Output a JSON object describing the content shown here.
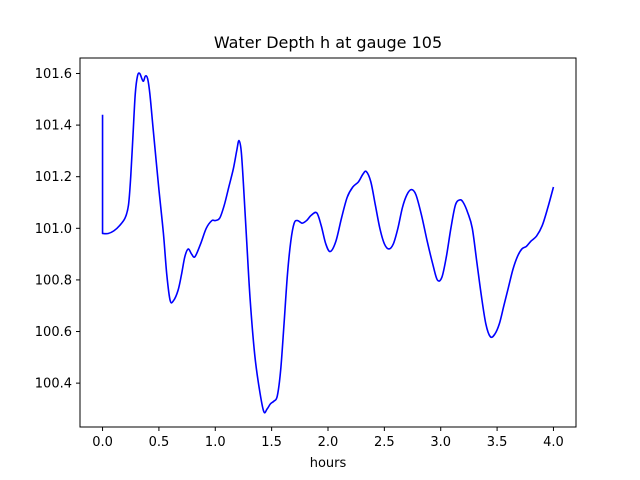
{
  "chart_data": {
    "type": "line",
    "title": "Water Depth h at gauge 105",
    "xlabel": "hours",
    "ylabel": "",
    "xlim": [
      -0.2,
      4.2
    ],
    "ylim": [
      100.23,
      101.66
    ],
    "xticks": [
      0.0,
      0.5,
      1.0,
      1.5,
      2.0,
      2.5,
      3.0,
      3.5,
      4.0
    ],
    "xtick_labels": [
      "0.0",
      "0.5",
      "1.0",
      "1.5",
      "2.0",
      "2.5",
      "3.0",
      "3.5",
      "4.0"
    ],
    "yticks": [
      100.4,
      100.6,
      100.8,
      101.0,
      101.2,
      101.4,
      101.6
    ],
    "ytick_labels": [
      "100.4",
      "100.6",
      "100.8",
      "101.0",
      "101.2",
      "101.4",
      "101.6"
    ],
    "grid": false,
    "series": [
      {
        "color": "#0000ff",
        "x": [
          0.0,
          0.0,
          0.05,
          0.1,
          0.15,
          0.2,
          0.23,
          0.25,
          0.27,
          0.29,
          0.31,
          0.33,
          0.36,
          0.38,
          0.4,
          0.42,
          0.45,
          0.5,
          0.54,
          0.57,
          0.6,
          0.63,
          0.67,
          0.7,
          0.73,
          0.76,
          0.79,
          0.82,
          0.87,
          0.92,
          0.97,
          1.0,
          1.04,
          1.08,
          1.12,
          1.16,
          1.19,
          1.21,
          1.23,
          1.25,
          1.28,
          1.31,
          1.35,
          1.39,
          1.43,
          1.46,
          1.49,
          1.52,
          1.55,
          1.58,
          1.61,
          1.64,
          1.67,
          1.7,
          1.73,
          1.77,
          1.81,
          1.85,
          1.9,
          1.94,
          1.98,
          2.02,
          2.07,
          2.12,
          2.17,
          2.22,
          2.27,
          2.31,
          2.34,
          2.38,
          2.42,
          2.46,
          2.5,
          2.54,
          2.58,
          2.62,
          2.66,
          2.7,
          2.74,
          2.78,
          2.83,
          2.88,
          2.93,
          2.97,
          3.01,
          3.05,
          3.09,
          3.13,
          3.17,
          3.2,
          3.24,
          3.28,
          3.32,
          3.36,
          3.4,
          3.44,
          3.48,
          3.52,
          3.56,
          3.6,
          3.64,
          3.68,
          3.72,
          3.76,
          3.8,
          3.85,
          3.9,
          3.95,
          4.0
        ],
        "y": [
          101.44,
          100.98,
          100.98,
          100.99,
          101.01,
          101.04,
          101.09,
          101.2,
          101.36,
          101.52,
          101.59,
          101.6,
          101.57,
          101.59,
          101.58,
          101.52,
          101.38,
          101.15,
          100.98,
          100.82,
          100.72,
          100.72,
          100.76,
          100.82,
          100.89,
          100.92,
          100.9,
          100.89,
          100.94,
          101.0,
          101.03,
          101.03,
          101.04,
          101.09,
          101.16,
          101.23,
          101.3,
          101.34,
          101.3,
          101.17,
          100.94,
          100.72,
          100.51,
          100.38,
          100.29,
          100.3,
          100.32,
          100.33,
          100.35,
          100.45,
          100.63,
          100.82,
          100.95,
          101.02,
          101.03,
          101.02,
          101.03,
          101.05,
          101.06,
          101.01,
          100.94,
          100.91,
          100.95,
          101.04,
          101.12,
          101.16,
          101.18,
          101.21,
          101.22,
          101.18,
          101.09,
          101.0,
          100.94,
          100.92,
          100.94,
          101.0,
          101.08,
          101.13,
          101.15,
          101.13,
          101.05,
          100.95,
          100.86,
          100.8,
          100.81,
          100.89,
          101.0,
          101.09,
          101.11,
          101.1,
          101.06,
          101.0,
          100.87,
          100.74,
          100.63,
          100.58,
          100.59,
          100.63,
          100.7,
          100.77,
          100.84,
          100.89,
          100.92,
          100.93,
          100.95,
          100.97,
          101.01,
          101.08,
          101.16
        ]
      }
    ]
  }
}
